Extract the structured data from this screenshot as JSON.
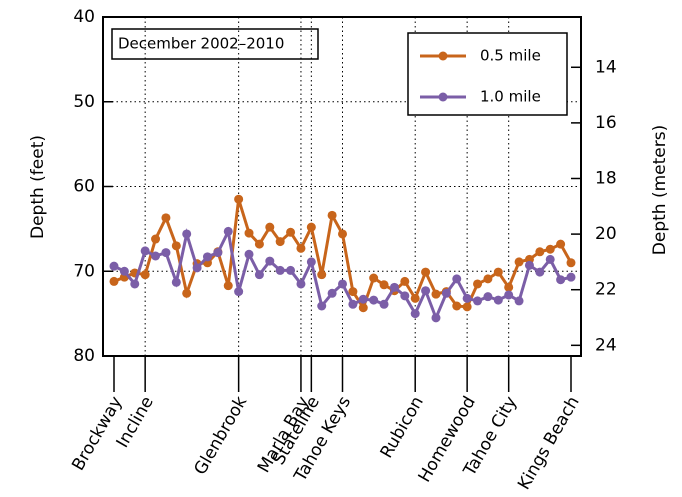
{
  "chart_data": {
    "type": "line",
    "annotation": "December 2002–2010",
    "ylabel": "Depth (feet)",
    "y2label": "Depth (meters)",
    "categories": [
      "Brockway",
      null,
      null,
      "Incline",
      null,
      null,
      null,
      null,
      null,
      null,
      null,
      null,
      "Glenbrook",
      null,
      null,
      null,
      null,
      null,
      "Marla Bay",
      "Stateline",
      null,
      null,
      "Tahoe Keys",
      null,
      null,
      null,
      null,
      null,
      null,
      "Rubicon",
      null,
      null,
      null,
      null,
      "Homewood",
      null,
      null,
      null,
      "Tahoe City",
      null,
      null,
      null,
      null,
      null,
      "Kings Beach"
    ],
    "series": [
      {
        "name": "0.5 mile",
        "color": "#c8651b",
        "values": [
          71.2,
          70.7,
          70.2,
          70.4,
          66.2,
          63.7,
          67.0,
          72.6,
          69.1,
          69.0,
          67.7,
          71.7,
          61.5,
          65.5,
          66.8,
          64.8,
          66.5,
          65.4,
          67.3,
          64.8,
          70.4,
          63.4,
          65.6,
          72.4,
          74.3,
          70.8,
          71.6,
          72.3,
          71.2,
          73.2,
          70.1,
          72.7,
          72.4,
          74.1,
          74.2,
          71.5,
          70.9,
          70.1,
          71.9,
          68.9,
          68.6,
          67.7,
          67.4,
          66.8,
          69.0
        ]
      },
      {
        "name": "1.0 mile",
        "color": "#7b5ea7",
        "values": [
          69.4,
          70.0,
          71.5,
          67.6,
          68.2,
          67.8,
          71.3,
          65.6,
          69.6,
          68.3,
          67.8,
          65.3,
          72.4,
          68.0,
          70.4,
          68.8,
          69.9,
          69.9,
          71.5,
          68.9,
          74.1,
          72.6,
          71.5,
          73.9,
          73.3,
          73.4,
          73.9,
          71.9,
          72.9,
          75.0,
          72.3,
          75.5,
          72.6,
          70.9,
          73.2,
          73.5,
          73.0,
          73.4,
          72.8,
          73.5,
          69.3,
          70.1,
          68.6,
          71.0,
          70.7
        ]
      }
    ],
    "ylim": [
      40,
      80
    ],
    "yticks": [
      40,
      50,
      60,
      70,
      80
    ],
    "y_inverted": true,
    "y2lim": [
      12.192,
      24.384
    ],
    "y2ticks": [
      14,
      16,
      18,
      20,
      22,
      24
    ],
    "grid": true,
    "legend": "upper right"
  }
}
